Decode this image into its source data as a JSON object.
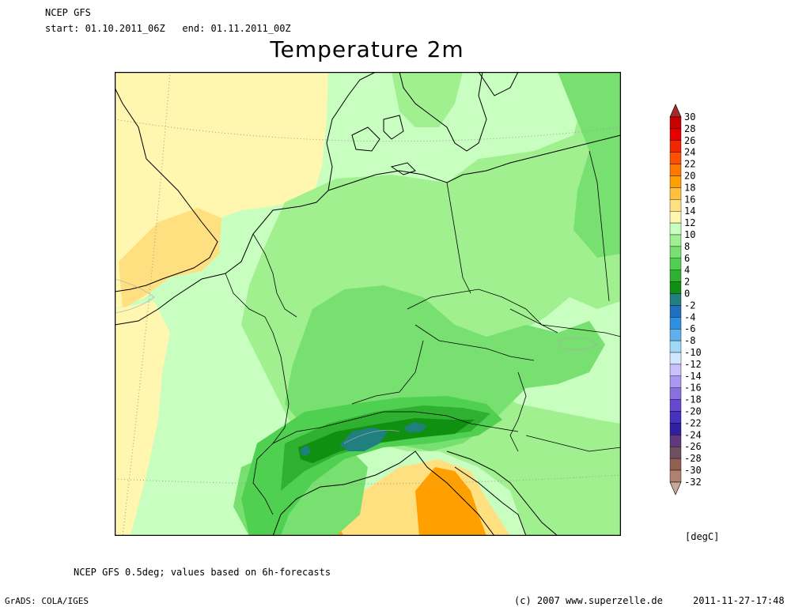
{
  "header": {
    "model": "NCEP GFS",
    "period": "start: 01.10.2011_06Z   end: 01.11.2011_00Z",
    "title": "Temperature 2m"
  },
  "legend": {
    "units": "[degC]",
    "levels": [
      30,
      28,
      26,
      24,
      22,
      20,
      18,
      16,
      14,
      12,
      10,
      8,
      6,
      4,
      2,
      0,
      -2,
      -4,
      -6,
      -8,
      -10,
      -12,
      -14,
      -16,
      -18,
      -20,
      -22,
      -24,
      -26,
      -28,
      -30,
      -32
    ],
    "colors": [
      "#a52a2a",
      "#c80000",
      "#e60000",
      "#f02800",
      "#ff5000",
      "#ff7800",
      "#ffa000",
      "#ffc040",
      "#ffe080",
      "#fff6b0",
      "#c8ffc0",
      "#a0f090",
      "#78e070",
      "#50d050",
      "#30b030",
      "#109010",
      "#208080",
      "#2070c0",
      "#3090e0",
      "#60b0f0",
      "#a0d8f8",
      "#d0e8ff",
      "#c8c0f8",
      "#a898f0",
      "#8870e0",
      "#6848d0",
      "#4830c0",
      "#3020a0",
      "#603880",
      "#705060",
      "#906050",
      "#b08070",
      "#c8a898"
    ]
  },
  "footer": {
    "note": "NCEP GFS 0.5deg; values based on 6h-forecasts",
    "software": "GrADS: COLA/IGES",
    "copyright": "(c) 2007 www.superzelle.de",
    "timestamp": "2011-11-27-17:48"
  }
}
